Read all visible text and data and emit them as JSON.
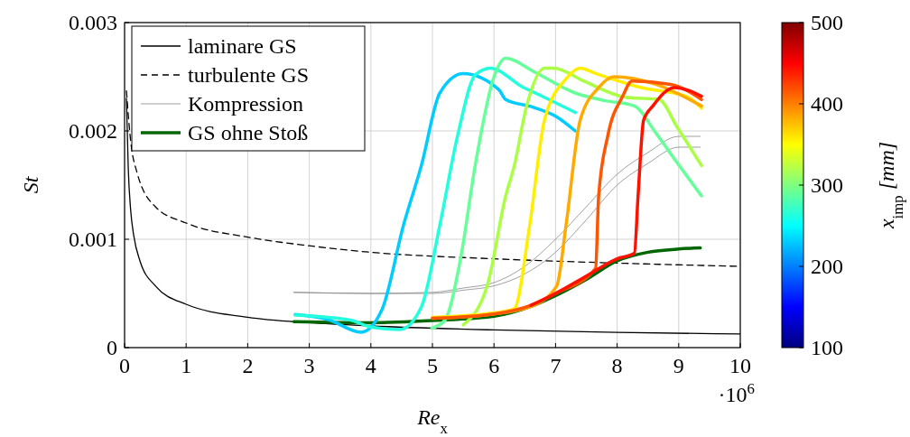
{
  "chart_data": {
    "type": "line",
    "xlabel": "Re$_{x}$",
    "ylabel": "St",
    "clabel": "x$_{imp}$ [mm]",
    "clim": [
      100,
      500
    ],
    "cticks": [
      100,
      200,
      300,
      400,
      500
    ],
    "xlim": [
      0,
      10
    ],
    "xticks": [
      0,
      1,
      2,
      3,
      4,
      5,
      6,
      7,
      8,
      9,
      10
    ],
    "ylim": [
      0,
      0.003
    ],
    "yticks": [
      0,
      0.001,
      0.002,
      0.003
    ],
    "grid": true,
    "legend": "top left",
    "annotations": [
      "·10$^{6}$"
    ],
    "series": [
      {
        "name": "laminare GS",
        "color": "#000000",
        "line_style": "solid",
        "x": [
          0.03,
          0.06,
          0.1,
          0.15,
          0.25,
          0.5,
          1,
          2,
          3,
          4,
          6,
          8,
          10
        ],
        "values": [
          0.0023,
          0.00165,
          0.00126,
          0.00103,
          0.0008,
          0.00057,
          0.0004,
          0.00028,
          0.00023,
          0.0002,
          0.000163,
          0.00014,
          0.000126
        ]
      },
      {
        "name": "turbulente GS",
        "color": "#000000",
        "line_style": "dashed",
        "x": [
          0.03,
          0.1,
          0.2,
          0.5,
          1,
          2,
          3,
          4,
          6,
          8,
          10
        ],
        "values": [
          0.00237,
          0.0019,
          0.00162,
          0.0013,
          0.00115,
          0.00102,
          0.00094,
          0.00088,
          0.00082,
          0.00078,
          0.00075
        ]
      },
      {
        "name": "Kompression",
        "color": "#888888",
        "line_style": "solid",
        "x": [
          2.75,
          4,
          5,
          5.5,
          6,
          6.5,
          7,
          7.5,
          8,
          8.5,
          9,
          9.35
        ],
        "values": [
          0.00051,
          0.0005,
          0.00051,
          0.00055,
          0.0006,
          0.00075,
          0.001,
          0.0013,
          0.0016,
          0.0018,
          0.00195,
          0.00195
        ]
      },
      {
        "color": "#888888",
        "line_style": "solid",
        "x": [
          2.75,
          4,
          5,
          5.5,
          6,
          6.5,
          7,
          7.5,
          8,
          8.5,
          9,
          9.35
        ],
        "values": [
          0.00051,
          0.0005,
          0.0005,
          0.00053,
          0.00057,
          0.00068,
          0.00088,
          0.00118,
          0.0015,
          0.0017,
          0.00185,
          0.00185
        ]
      },
      {
        "name": "GS ohne Stoß",
        "color": "#006600",
        "line_style": "solid",
        "x": [
          2.75,
          4,
          5,
          6,
          6.6,
          7,
          7.5,
          8,
          8.5,
          9,
          9.35
        ],
        "values": [
          0.00024,
          0.00023,
          0.00025,
          0.00029,
          0.00038,
          0.00048,
          0.00063,
          0.0008,
          0.00088,
          0.00091,
          0.00092
        ]
      },
      {
        "color": "#00ccff",
        "line_style": "solid",
        "x": [
          2.77,
          3.3,
          3.84,
          4.18,
          4.53,
          4.82,
          5.12,
          5.5,
          6.08,
          6.19,
          6.63,
          7.02,
          7.32
        ],
        "values": [
          0.000306,
          0.00026,
          0.000142,
          0.00035,
          0.00113,
          0.00168,
          0.00235,
          0.00253,
          0.00238,
          0.00229,
          0.00222,
          0.00213,
          0.002
        ]
      },
      {
        "color": "#22ffdd",
        "line_style": "solid",
        "x": [
          2.77,
          3.3,
          3.7,
          4,
          4.47,
          4.82,
          5.12,
          5.41,
          5.7,
          5.94,
          6.48,
          6.67,
          7.32
        ],
        "values": [
          0.0003,
          0.00028,
          0.00025,
          0.00019,
          0.000167,
          0.000375,
          0.00113,
          0.00196,
          0.00252,
          0.00258,
          0.0024,
          0.00235,
          0.00217
        ]
      },
      {
        "color": "#66ff99",
        "line_style": "solid",
        "x": [
          4.99,
          5.2,
          5.45,
          5.7,
          6.0,
          6.19,
          6.67,
          7.32,
          7.8,
          8.28,
          8.63,
          8.97,
          9.37
        ],
        "values": [
          0.00018,
          0.00025,
          0.0008,
          0.0017,
          0.0025,
          0.00267,
          0.00254,
          0.00235,
          0.00228,
          0.00223,
          0.00198,
          0.00171,
          0.0014
        ]
      },
      {
        "color": "#aaff44",
        "line_style": "solid",
        "x": [
          5.5,
          5.89,
          6.19,
          6.33,
          6.53,
          6.82,
          6.97,
          7.46,
          8.14,
          8.68,
          8.97,
          9.37
        ],
        "values": [
          0.00021,
          0.00057,
          0.0014,
          0.00168,
          0.00223,
          0.00258,
          0.00258,
          0.00246,
          0.00231,
          0.00229,
          0.00204,
          0.00168
        ]
      },
      {
        "color": "#ffee00",
        "line_style": "solid",
        "x": [
          5.0,
          6.0,
          6.33,
          6.58,
          6.82,
          7.17,
          7.4,
          7.65,
          8.39,
          9.12,
          9.37
        ],
        "values": [
          0.00028,
          0.00032,
          0.00036,
          0.00113,
          0.0021,
          0.00248,
          0.00258,
          0.00253,
          0.0024,
          0.00232,
          0.00221
        ]
      },
      {
        "color": "#ffaa00",
        "line_style": "solid",
        "x": [
          5.0,
          6.0,
          6.6,
          7.02,
          7.17,
          7.4,
          7.7,
          7.95,
          8.63,
          9.37
        ],
        "values": [
          0.00027,
          0.00031,
          0.00038,
          0.00057,
          0.00113,
          0.0021,
          0.0024,
          0.0025,
          0.00243,
          0.00223
        ]
      },
      {
        "color": "#ff5500",
        "line_style": "solid",
        "x": [
          5.0,
          6.0,
          6.6,
          7.0,
          7.65,
          7.7,
          7.85,
          8.09,
          8.24,
          8.87,
          9.37
        ],
        "values": [
          0.00027,
          0.00031,
          0.00039,
          0.0005,
          0.00073,
          0.0014,
          0.00196,
          0.00232,
          0.00246,
          0.00243,
          0.00229
        ]
      },
      {
        "color": "#ff1100",
        "line_style": "solid",
        "x": [
          6.6,
          7.0,
          7.5,
          8.0,
          8.28,
          8.34,
          8.43,
          8.58,
          8.93,
          9.37
        ],
        "values": [
          0.00039,
          0.0005,
          0.00066,
          0.00082,
          0.00087,
          0.0014,
          0.0021,
          0.00223,
          0.0024,
          0.00232
        ]
      }
    ]
  }
}
